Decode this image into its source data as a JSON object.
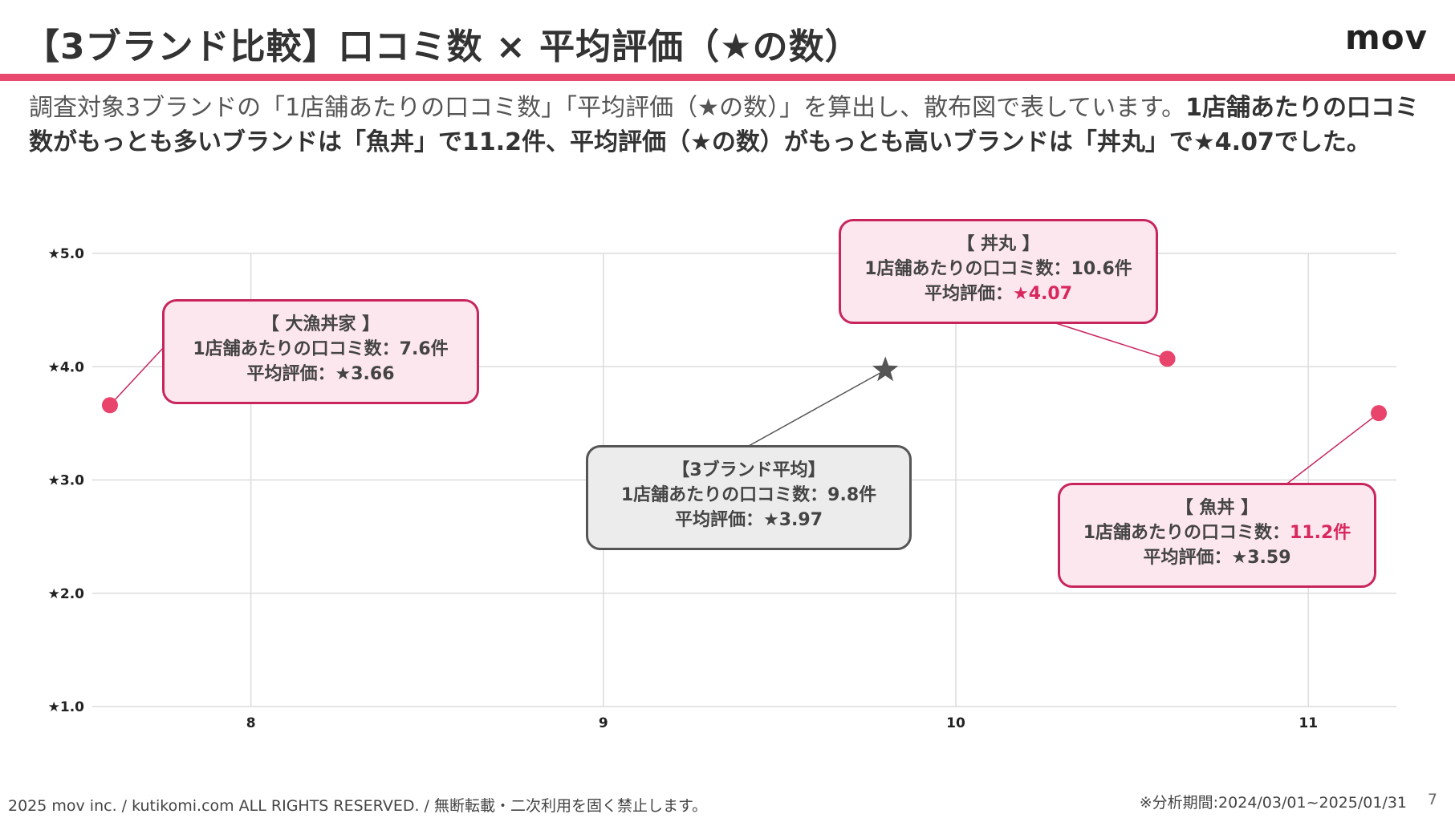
{
  "header": {
    "title": "【3ブランド比較】口コミ数 × 平均評価（★の数）",
    "logo": "mov"
  },
  "description": {
    "normal": "調査対象3ブランドの「1店舗あたりの口コミ数」「平均評価（★の数）」を算出し、散布図で表しています。",
    "bold": "1店舗あたりの口コミ数がもっとも多いブランドは「魚丼」で11.2件、平均評価（★の数）がもっとも高いブランドは「丼丸」で★4.07でした。"
  },
  "chart_data": {
    "type": "scatter",
    "title": "",
    "xlabel": "",
    "ylabel": "",
    "xlim": [
      7.55,
      11.25
    ],
    "ylim": [
      1.0,
      5.0
    ],
    "x_ticks": [
      8,
      9,
      10,
      11
    ],
    "x_tick_labels": [
      "8",
      "9",
      "10",
      "11"
    ],
    "y_ticks": [
      1,
      2,
      3,
      4,
      5
    ],
    "y_tick_labels": [
      "★1.0",
      "★2.0",
      "★3.0",
      "★4.0",
      "★5.0"
    ],
    "grid": true,
    "points": [
      {
        "name": "大漁丼家",
        "x": 7.6,
        "y": 3.66,
        "marker": "circle",
        "color": "#e8446c"
      },
      {
        "name": "丼丸",
        "x": 10.6,
        "y": 4.07,
        "marker": "circle",
        "color": "#e8446c"
      },
      {
        "name": "魚丼",
        "x": 11.2,
        "y": 3.59,
        "marker": "circle",
        "color": "#e8446c"
      },
      {
        "name": "3ブランド平均",
        "x": 9.8,
        "y": 3.97,
        "marker": "star",
        "color": "#555555"
      }
    ]
  },
  "callouts": {
    "tairyo": {
      "title": "【 大漁丼家 】",
      "count_label": "1店舗あたりの口コミ数：",
      "count": "7.6件",
      "rating_label": "平均評価：",
      "rating": "★3.66"
    },
    "donmaru": {
      "title": "【 丼丸 】",
      "count_label": "1店舗あたりの口コミ数：",
      "count": "10.6件",
      "rating_label": "平均評価：",
      "rating": "★4.07"
    },
    "average": {
      "title": "【3ブランド平均】",
      "count_label": "1店舗あたりの口コミ数：",
      "count": "9.8件",
      "rating_label": "平均評価：",
      "rating": "★3.97"
    },
    "uodon": {
      "title": "【 魚丼 】",
      "count_label": "1店舗あたりの口コミ数：",
      "count": "11.2件",
      "rating_label": "平均評価：",
      "rating": "★3.59"
    }
  },
  "footer": {
    "copyright": "2025 mov inc. / kutikomi.com ALL RIGHTS RESERVED. / 無断転載・二次利用を固く禁止します。",
    "period": "※分析期間:2024/03/01~2025/01/31",
    "page": "7"
  }
}
